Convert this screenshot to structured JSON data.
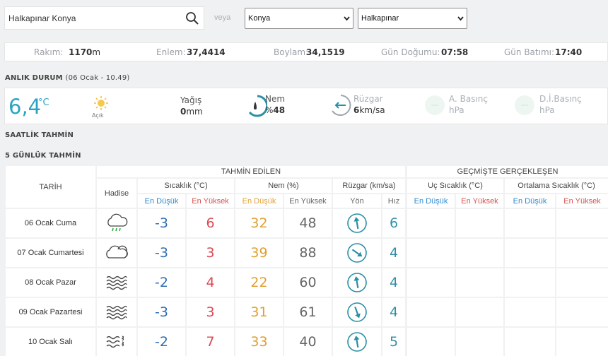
{
  "search": {
    "value": "Halkapınar Konya",
    "separator": "veya",
    "il": "Konya",
    "ilce": "Halkapınar"
  },
  "info": {
    "rakim_label": "Rakım:",
    "rakim_value": "1170",
    "rakim_unit": "m",
    "enlem_label": "Enlem:",
    "enlem_value": "37,4414",
    "boylam_label": "Boylam:",
    "boylam_value": "34,1519",
    "dogum_label": "Gün Doğumu:",
    "dogum_value": "07:58",
    "batim_label": "Gün Batımı:",
    "batim_value": "17:40"
  },
  "current": {
    "title": "ANLIK DURUM",
    "time": "(06 Ocak - 10.49)",
    "temp": "6,4",
    "temp_unit": "°C",
    "condition": "Açık",
    "yagis_label": "Yağış",
    "yagis_value": "0",
    "yagis_unit": "mm",
    "nem_label": "Nem",
    "nem_prefix": "%",
    "nem_value": "48",
    "ruzgar_label": "Rüzgar",
    "ruzgar_value": "6",
    "ruzgar_unit": "km/sa",
    "basinc_label": "A. Basınç",
    "basinc_unit": "hPa",
    "dibasinc_label": "D.İ.Basınç",
    "dibasinc_unit": "hPa"
  },
  "saatlik_title": "SAATLİK TAHMİN",
  "gunluk_title": "5 GÜNLÜK TAHMİN",
  "table": {
    "tarih": "TARİH",
    "hadise": "Hadise",
    "tahmin": "TAHMİN EDİLEN",
    "gecmis": "GEÇMİŞTE GERÇEKLEŞEN",
    "sicaklik": "Sıcaklık (°C)",
    "nem": "Nem (%)",
    "ruzgar": "Rüzgar (km/sa)",
    "uc_sicaklik": "Uç Sıcaklık (°C)",
    "ort_sicaklik": "Ortalama Sıcaklık (°C)",
    "en_dusuk": "En Düşük",
    "en_yuksek": "En Yüksek",
    "yon": "Yön",
    "hiz": "Hız",
    "rows": [
      {
        "date": "06 Ocak Cuma",
        "icon": "cloud-rain-icon",
        "tmin": "-3",
        "tmax": "6",
        "nmin": "32",
        "nmax": "48",
        "dir": 0,
        "spd": "6"
      },
      {
        "date": "07 Ocak Cumartesi",
        "icon": "cloud-icon",
        "tmin": "-3",
        "tmax": "3",
        "nmin": "39",
        "nmax": "88",
        "dir": 135,
        "spd": "4"
      },
      {
        "date": "08 Ocak Pazar",
        "icon": "fog-icon",
        "tmin": "-2",
        "tmax": "4",
        "nmin": "22",
        "nmax": "60",
        "dir": 0,
        "spd": "4"
      },
      {
        "date": "09 Ocak Pazartesi",
        "icon": "fog-icon",
        "tmin": "-3",
        "tmax": "3",
        "nmin": "31",
        "nmax": "61",
        "dir": 170,
        "spd": "4"
      },
      {
        "date": "10 Ocak Salı",
        "icon": "windy-fog-icon",
        "tmin": "-2",
        "tmax": "7",
        "nmin": "33",
        "nmax": "40",
        "dir": 0,
        "spd": "5"
      }
    ]
  },
  "colors": {
    "accent": "#2ba3c2",
    "min": "#2f6fb3",
    "max": "#d94a55",
    "humid_min": "#e0a030"
  }
}
